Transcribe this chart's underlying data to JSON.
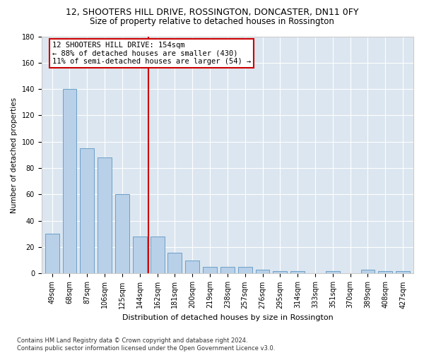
{
  "title1": "12, SHOOTERS HILL DRIVE, ROSSINGTON, DONCASTER, DN11 0FY",
  "title2": "Size of property relative to detached houses in Rossington",
  "xlabel": "Distribution of detached houses by size in Rossington",
  "ylabel": "Number of detached properties",
  "categories": [
    "49sqm",
    "68sqm",
    "87sqm",
    "106sqm",
    "125sqm",
    "144sqm",
    "162sqm",
    "181sqm",
    "200sqm",
    "219sqm",
    "238sqm",
    "257sqm",
    "276sqm",
    "295sqm",
    "314sqm",
    "333sqm",
    "351sqm",
    "370sqm",
    "389sqm",
    "408sqm",
    "427sqm"
  ],
  "values": [
    30,
    140,
    95,
    88,
    60,
    28,
    28,
    16,
    10,
    5,
    5,
    5,
    3,
    2,
    2,
    0,
    2,
    0,
    3,
    2,
    2
  ],
  "bar_color": "#b8d0e8",
  "bar_edge_color": "#6ca0c8",
  "vline_x_index": 6,
  "vline_color": "#cc0000",
  "annotation_text": "12 SHOOTERS HILL DRIVE: 154sqm\n← 88% of detached houses are smaller (430)\n11% of semi-detached houses are larger (54) →",
  "annotation_box_facecolor": "#ffffff",
  "annotation_box_edgecolor": "#cc0000",
  "ylim": [
    0,
    180
  ],
  "yticks": [
    0,
    20,
    40,
    60,
    80,
    100,
    120,
    140,
    160,
    180
  ],
  "footer": "Contains HM Land Registry data © Crown copyright and database right 2024.\nContains public sector information licensed under the Open Government Licence v3.0.",
  "fig_facecolor": "#ffffff",
  "plot_bg_color": "#dce6f0",
  "grid_color": "#ffffff",
  "title1_fontsize": 9,
  "title2_fontsize": 8.5,
  "xlabel_fontsize": 8,
  "ylabel_fontsize": 7.5,
  "tick_fontsize": 7,
  "annotation_fontsize": 7.5,
  "footer_fontsize": 6
}
